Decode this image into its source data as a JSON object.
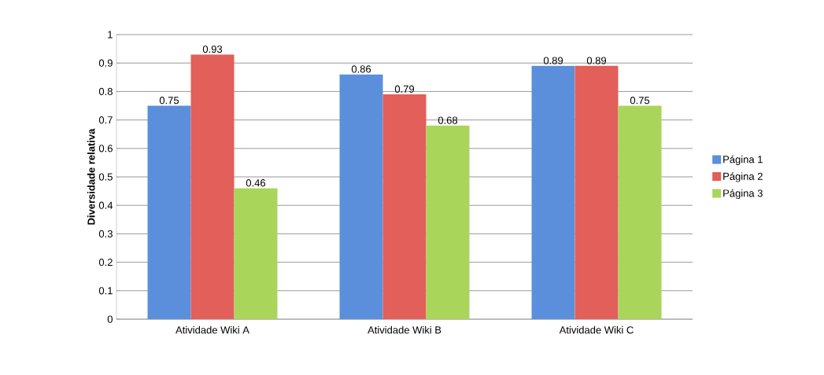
{
  "chart_data": {
    "type": "bar",
    "ylabel": "Diversidade relativa",
    "categories": [
      "Atividade Wiki A",
      "Atividade Wiki B",
      "Atividade Wiki C"
    ],
    "series": [
      {
        "name": "Página 1",
        "color": "#5b8fdc",
        "values": [
          0.75,
          0.86,
          0.89
        ]
      },
      {
        "name": "Página 2",
        "color": "#e25f5a",
        "values": [
          0.93,
          0.79,
          0.89
        ]
      },
      {
        "name": "Página 3",
        "color": "#a9d55b",
        "values": [
          0.46,
          0.68,
          0.75
        ]
      }
    ],
    "ylim": [
      0,
      1
    ],
    "yticks": [
      0,
      0.1,
      0.2,
      0.3,
      0.4,
      0.5,
      0.6,
      0.7,
      0.8,
      0.9,
      1
    ],
    "grid": "y",
    "legend": "right",
    "data_labels": true
  }
}
